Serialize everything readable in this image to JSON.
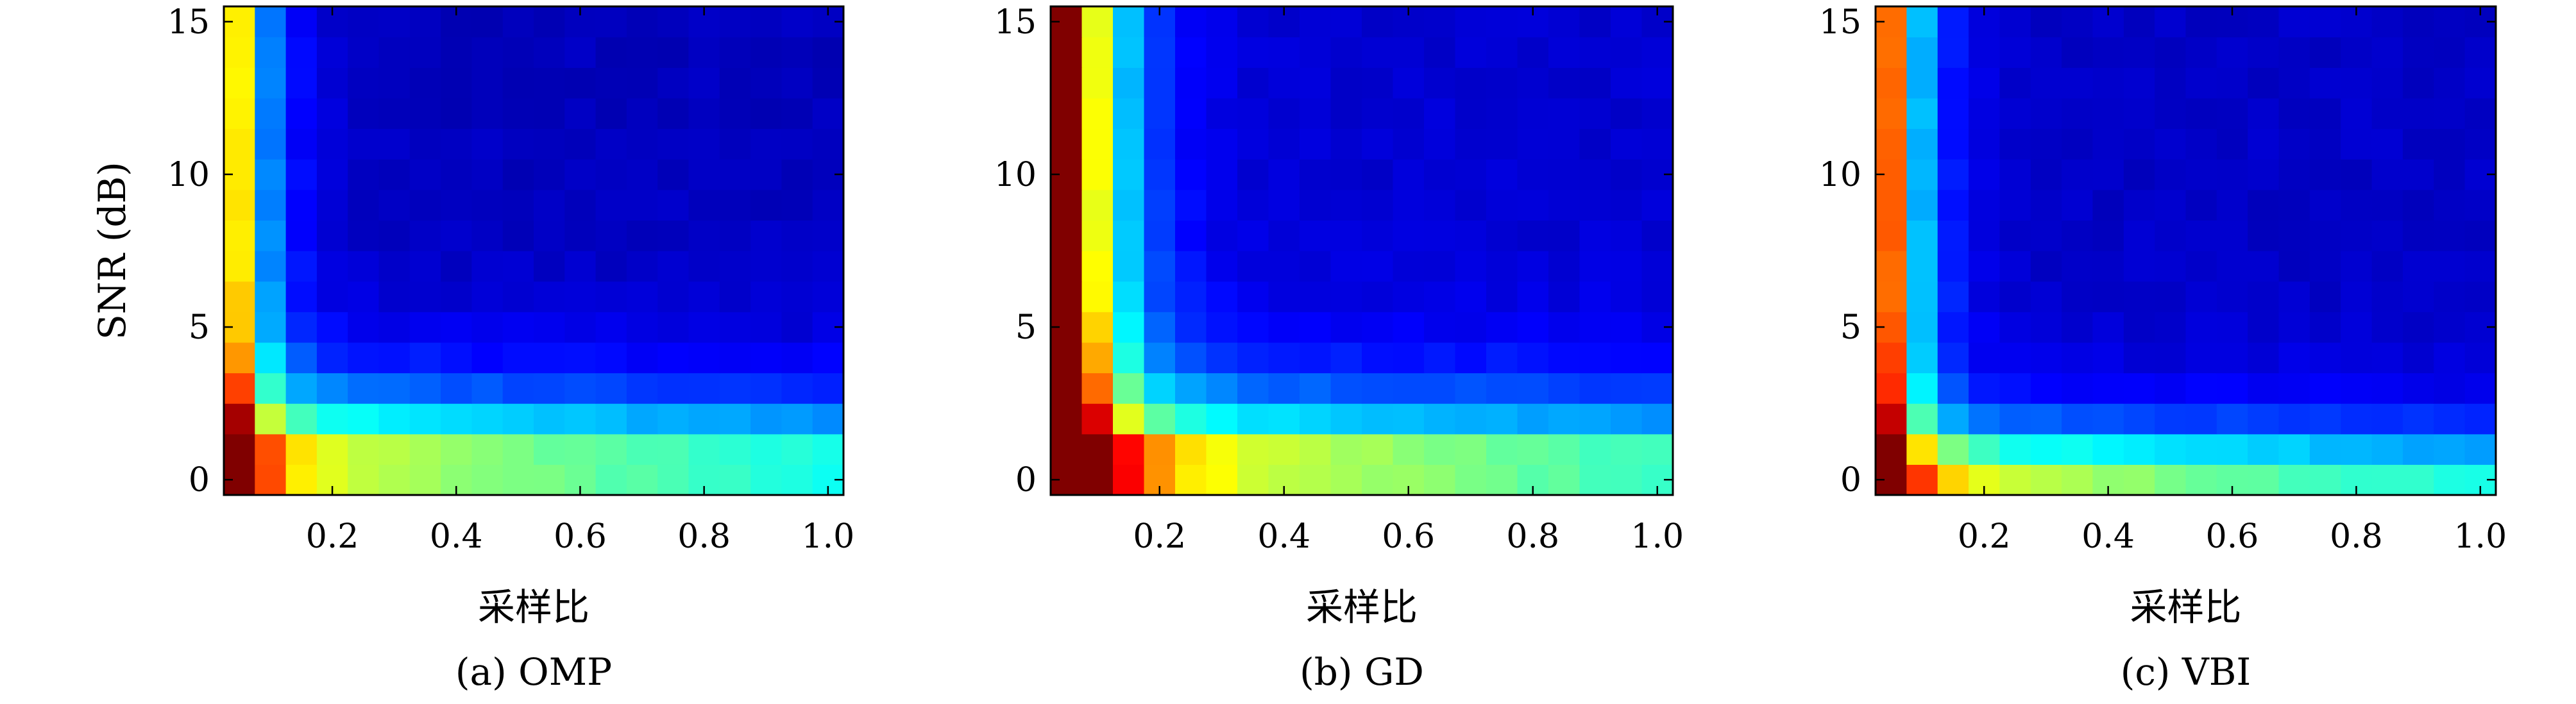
{
  "chart_data": [
    {
      "type": "heatmap",
      "caption": "(a) OMP",
      "xlabel": "采样比",
      "ylabel": "SNR (dB)",
      "xlim": [
        0.025,
        1.025
      ],
      "ylim": [
        -0.5,
        15.5
      ],
      "x_ticks": [
        "0.2",
        "0.4",
        "0.6",
        "0.8",
        "1.0"
      ],
      "y_ticks": [
        "0",
        "5",
        "10",
        "15"
      ],
      "colormap": "jet",
      "x": [
        0.05,
        0.1,
        0.15,
        0.2,
        0.25,
        0.3,
        0.35,
        0.4,
        0.45,
        0.5,
        0.55,
        0.6,
        0.65,
        0.7,
        0.75,
        0.8,
        0.85,
        0.9,
        0.95,
        1.0
      ],
      "y": [
        0,
        1,
        2,
        3,
        4,
        5,
        6,
        7,
        8,
        9,
        10,
        11,
        12,
        13,
        14,
        15
      ],
      "params": {
        "amp": 0.9,
        "x0": 0.03,
        "xd": 0.045,
        "y0": 1.2,
        "yd": 1.6,
        "base": 0.06
      }
    },
    {
      "type": "heatmap",
      "caption": "(b) GD",
      "xlabel": "采样比",
      "ylabel": "",
      "xlim": [
        0.025,
        1.025
      ],
      "ylim": [
        -0.5,
        15.5
      ],
      "x_ticks": [
        "0.2",
        "0.4",
        "0.6",
        "0.8",
        "1.0"
      ],
      "y_ticks": [
        "0",
        "5",
        "10",
        "15"
      ],
      "colormap": "jet",
      "x": [
        0.05,
        0.1,
        0.15,
        0.2,
        0.25,
        0.3,
        0.35,
        0.4,
        0.45,
        0.5,
        0.55,
        0.6,
        0.65,
        0.7,
        0.75,
        0.8,
        0.85,
        0.9,
        0.95,
        1.0
      ],
      "y": [
        0,
        1,
        2,
        3,
        4,
        5,
        6,
        7,
        8,
        9,
        10,
        11,
        12,
        13,
        14,
        15
      ],
      "params": {
        "amp": 0.95,
        "x0": 0.065,
        "xd": 0.06,
        "y0": 1.0,
        "yd": 1.6,
        "base": 0.08
      }
    },
    {
      "type": "heatmap",
      "caption": "(c) VBI",
      "xlabel": "采样比",
      "ylabel": "",
      "xlim": [
        0.025,
        1.025
      ],
      "ylim": [
        -0.5,
        15.5
      ],
      "x_ticks": [
        "0.2",
        "0.4",
        "0.6",
        "0.8",
        "1.0"
      ],
      "y_ticks": [
        "0",
        "5",
        "10",
        "15"
      ],
      "colormap": "jet",
      "x": [
        0.05,
        0.1,
        0.15,
        0.2,
        0.25,
        0.3,
        0.35,
        0.4,
        0.45,
        0.5,
        0.55,
        0.6,
        0.65,
        0.7,
        0.75,
        0.8,
        0.85,
        0.9,
        0.95,
        1.0
      ],
      "y": [
        0,
        1,
        2,
        3,
        4,
        5,
        6,
        7,
        8,
        9,
        10,
        11,
        12,
        13,
        14,
        15
      ],
      "params": {
        "amp": 0.88,
        "x0": 0.04,
        "xd": 0.045,
        "y0": 0.5,
        "yd": 1.2,
        "base": 0.07
      }
    }
  ]
}
